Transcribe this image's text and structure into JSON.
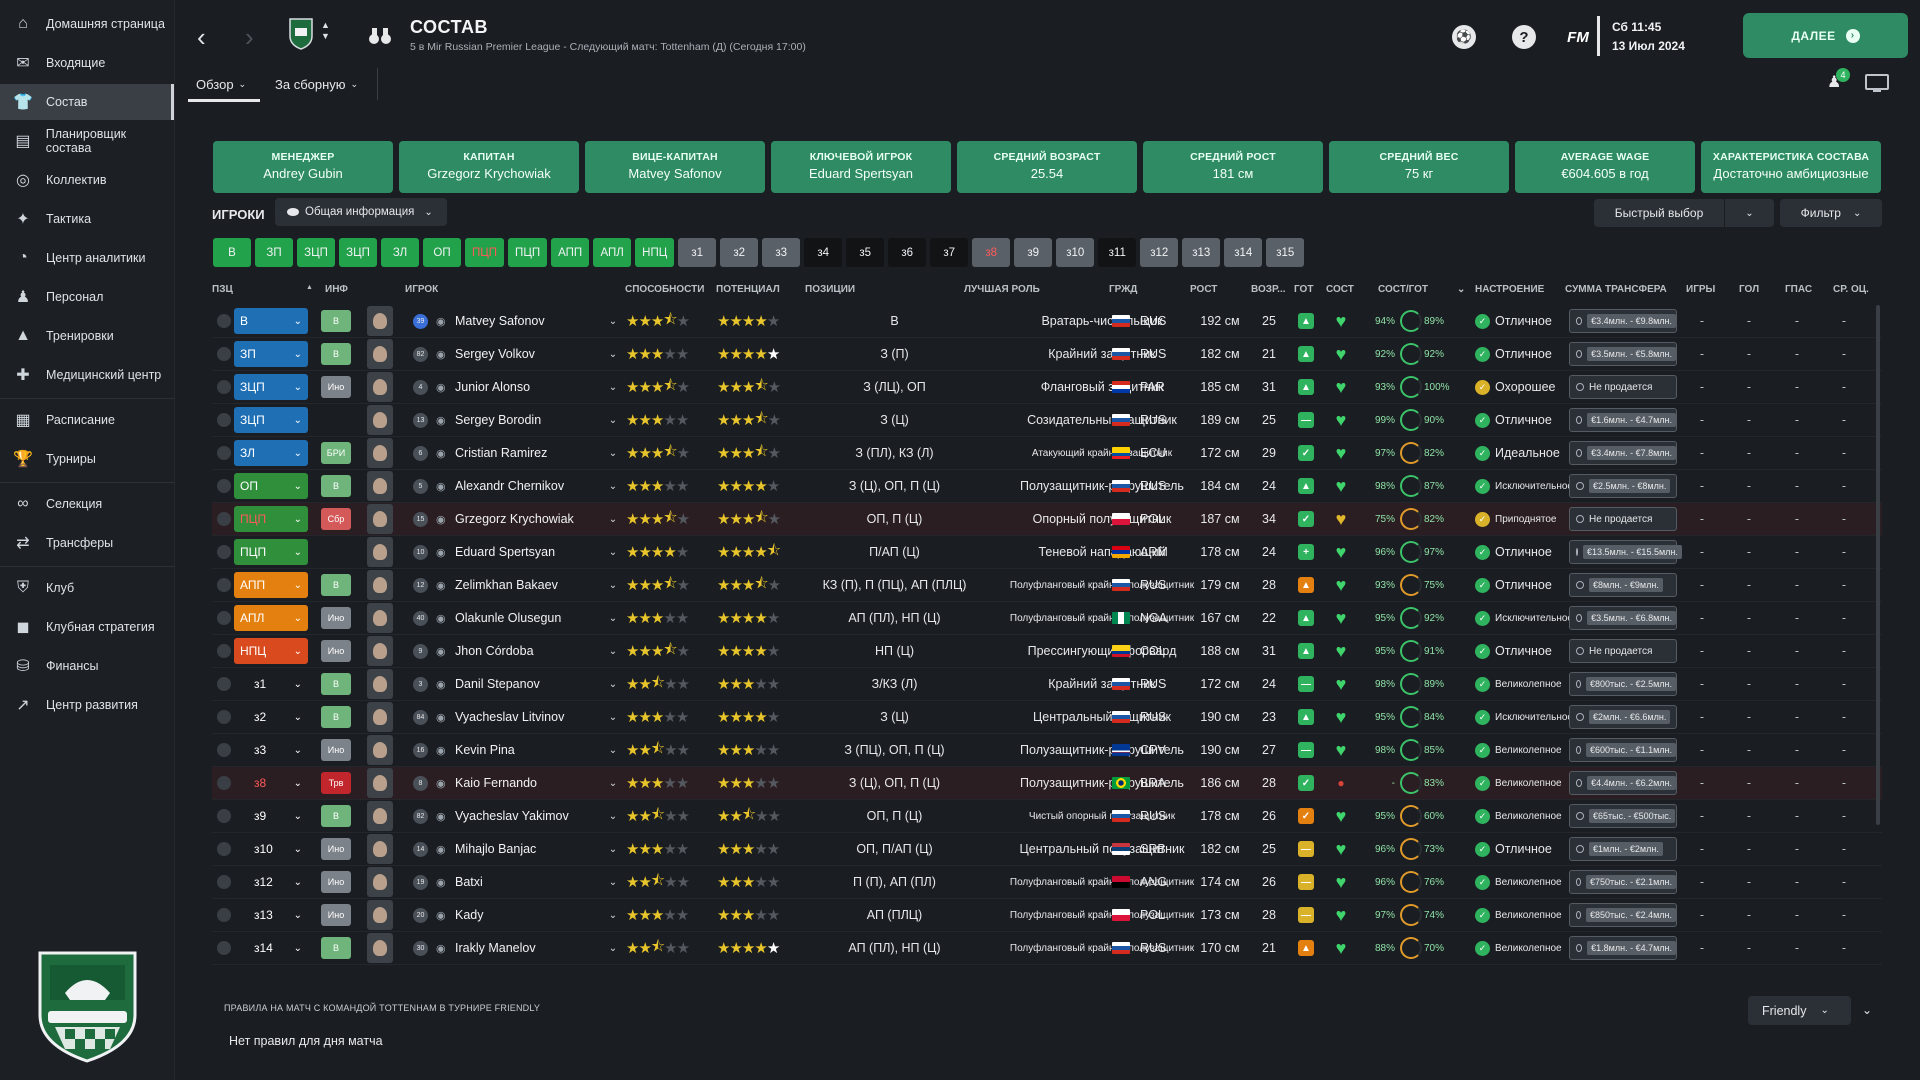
{
  "colors": {
    "accent": "#2e8b63",
    "chip_green": "#22a24a",
    "star": "#e8c52b",
    "pos_blue": "#1f6fb5",
    "pos_green": "#2f8f3a",
    "pos_orange": "#e3800f",
    "pos_red": "#d94a1e"
  },
  "sidebar": {
    "items": [
      {
        "label": "Домашняя страница",
        "icon": "home-icon"
      },
      {
        "label": "Входящие",
        "icon": "mail-icon"
      },
      {
        "label": "Состав",
        "icon": "shirt-icon"
      },
      {
        "label": "Планировщик состава",
        "icon": "clipboard-icon"
      },
      {
        "label": "Коллектив",
        "icon": "group-icon"
      },
      {
        "label": "Тактика",
        "icon": "tactics-icon"
      },
      {
        "label": "Центр аналитики",
        "icon": "analytics-icon"
      },
      {
        "label": "Персонал",
        "icon": "staff-icon"
      },
      {
        "label": "Тренировки",
        "icon": "cone-icon"
      },
      {
        "label": "Медицинский центр",
        "icon": "medical-icon"
      },
      {
        "label": "Расписание",
        "icon": "calendar-icon"
      },
      {
        "label": "Турниры",
        "icon": "trophy-icon"
      },
      {
        "label": "Селекция",
        "icon": "binoculars-icon"
      },
      {
        "label": "Трансферы",
        "icon": "transfer-icon"
      },
      {
        "label": "Клуб",
        "icon": "shield-icon"
      },
      {
        "label": "Клубная стратегия",
        "icon": "strategy-icon"
      },
      {
        "label": "Финансы",
        "icon": "money-icon"
      },
      {
        "label": "Центр развития",
        "icon": "development-icon"
      }
    ]
  },
  "header": {
    "title": "СОСТАВ",
    "subtitle": "5 в Mir Russian Premier League - Следующий матч: Tottenham (Д) (Сегодня 17:00)",
    "fm_label": "FM",
    "day_time": "Сб 11:45",
    "date": "13 Июл 2024",
    "continue_label": "ДАЛЕЕ",
    "inbox_badge": "4",
    "tabs": [
      "Обзор",
      "За сборную"
    ]
  },
  "cards": [
    {
      "label": "МЕНЕДЖЕР",
      "value": "Andrey Gubin"
    },
    {
      "label": "КАПИТАН",
      "value": "Grzegorz Krychowiak"
    },
    {
      "label": "ВИЦЕ-КАПИТАН",
      "value": "Matvey Safonov"
    },
    {
      "label": "КЛЮЧЕВОЙ ИГРОК",
      "value": "Eduard Spertsyan"
    },
    {
      "label": "СРЕДНИЙ ВОЗРАСТ",
      "value": "25.54"
    },
    {
      "label": "СРЕДНИЙ РОСТ",
      "value": "181 см"
    },
    {
      "label": "СРЕДНИЙ ВЕС",
      "value": "75 кг"
    },
    {
      "label": "AVERAGE WAGE",
      "value": "€604.605 в год"
    },
    {
      "label": "ХАРАКТЕРИСТИКА СОСТАВА",
      "value": "Достаточно амбициозные"
    }
  ],
  "toolbar": {
    "players_label": "ИГРОКИ",
    "view": "Общая информация",
    "quick_select": "Быстрый выбор",
    "filter": "Фильтр"
  },
  "chips": [
    {
      "label": "В",
      "style": "green"
    },
    {
      "label": "ЗП",
      "style": "green"
    },
    {
      "label": "ЗЦП",
      "style": "green"
    },
    {
      "label": "ЗЦП",
      "style": "green"
    },
    {
      "label": "ЗЛ",
      "style": "green"
    },
    {
      "label": "ОП",
      "style": "green"
    },
    {
      "label": "ПЦП",
      "style": "red-text"
    },
    {
      "label": "ПЦП",
      "style": "green"
    },
    {
      "label": "АПП",
      "style": "green"
    },
    {
      "label": "АПЛ",
      "style": "green"
    },
    {
      "label": "НПЦ",
      "style": "green"
    },
    {
      "label": "з1",
      "style": "gray"
    },
    {
      "label": "з2",
      "style": "gray"
    },
    {
      "label": "з3",
      "style": "gray"
    },
    {
      "label": "з4",
      "style": "dark"
    },
    {
      "label": "з5",
      "style": "dark"
    },
    {
      "label": "з6",
      "style": "dark"
    },
    {
      "label": "з7",
      "style": "dark"
    },
    {
      "label": "з8",
      "style": "red-text gray"
    },
    {
      "label": "з9",
      "style": "gray"
    },
    {
      "label": "з10",
      "style": "gray"
    },
    {
      "label": "з11",
      "style": "dark"
    },
    {
      "label": "з12",
      "style": "gray"
    },
    {
      "label": "з13",
      "style": "gray"
    },
    {
      "label": "з14",
      "style": "gray"
    },
    {
      "label": "з15",
      "style": "gray"
    }
  ],
  "columns": [
    "ПЗЦ",
    "ИНФ",
    "ИГРОК",
    "СПОСОБНОСТИ",
    "ПОТЕНЦИАЛ",
    "ПОЗИЦИИ",
    "ЛУЧШАЯ РОЛЬ",
    "ГРЖД",
    "РОСТ",
    "ВОЗР...",
    "ГОТ",
    "СОСТ",
    "СОСТ/ГОТ",
    "НАСТРОЕНИЕ",
    "СУММА ТРАНСФЕРА",
    "ИГРЫ",
    "ГОЛ",
    "ГПАС",
    "СР. ОЦ."
  ],
  "players": [
    {
      "pos": "В",
      "pos_color": "blue",
      "info": "В",
      "info_color": "#6fb57b",
      "num": "39",
      "name": "Matvey Safonov",
      "abil": 3.5,
      "pot": 4,
      "pot_white": false,
      "positions": "В",
      "role": "Вратарь-чистильщик",
      "role_small": false,
      "flag": "ru",
      "nat": "RUS",
      "height": "192 см",
      "age": "25",
      "ready": "up",
      "cond": "green",
      "pct1": "94%",
      "pct2": "89%",
      "ring": "green",
      "mood_icon": "green",
      "mood": "Отличное",
      "mood_small": false,
      "fee": "€3.4млн. - €9.8млн.",
      "fee_box": true,
      "apps": "-",
      "goals": "-",
      "ast": "-",
      "avr": "-"
    },
    {
      "pos": "ЗП",
      "pos_color": "blue",
      "info": "В",
      "info_color": "#6fb57b",
      "num": "82",
      "name": "Sergey Volkov",
      "abil": 3,
      "pot": 4,
      "pot_white": true,
      "positions": "З (П)",
      "role": "Крайний защитник",
      "role_small": false,
      "flag": "ru",
      "nat": "RUS",
      "height": "182 см",
      "age": "21",
      "ready": "up",
      "cond": "green",
      "pct1": "92%",
      "pct2": "92%",
      "ring": "green",
      "mood_icon": "green",
      "mood": "Отличное",
      "mood_small": false,
      "fee": "€3.5млн. - €5.8млн.",
      "fee_box": true,
      "apps": "-",
      "goals": "-",
      "ast": "-",
      "avr": "-"
    },
    {
      "pos": "ЗЦП",
      "pos_color": "blue",
      "info": "Ино",
      "info_color": "#7c8289",
      "num": "4",
      "name": "Junior Alonso",
      "abil": 3.5,
      "pot": 3.5,
      "pot_white": false,
      "positions": "З (ЛЦ), ОП",
      "role": "Фланговый защитник",
      "role_small": false,
      "flag": "py",
      "nat": "PAR",
      "height": "185 см",
      "age": "31",
      "ready": "up",
      "cond": "green",
      "pct1": "93%",
      "pct2": "100%",
      "ring": "green",
      "mood_icon": "yellow",
      "mood": "Охорошее",
      "mood_small": false,
      "fee": "Не продается",
      "fee_box": false,
      "apps": "-",
      "goals": "-",
      "ast": "-",
      "avr": "-"
    },
    {
      "pos": "ЗЦП",
      "pos_color": "blue",
      "info": "",
      "info_color": "transparent",
      "num": "13",
      "name": "Sergey Borodin",
      "abil": 3,
      "pot": 3.5,
      "pot_white": false,
      "positions": "З (Ц)",
      "role": "Созидательный защитник",
      "role_small": false,
      "flag": "ru",
      "nat": "RUS",
      "height": "189 см",
      "age": "25",
      "ready": "mid",
      "cond": "green",
      "pct1": "99%",
      "pct2": "90%",
      "ring": "green",
      "mood_icon": "green",
      "mood": "Отличное",
      "mood_small": false,
      "fee": "€1.6млн. - €4.7млн.",
      "fee_box": true,
      "apps": "-",
      "goals": "-",
      "ast": "-",
      "avr": "-"
    },
    {
      "pos": "ЗЛ",
      "pos_color": "blue",
      "info": "БРИ",
      "info_color": "#6fb57b",
      "num": "6",
      "name": "Cristian Ramirez",
      "abil": 3.5,
      "pot": 3.5,
      "pot_white": false,
      "positions": "З (ПЛ), КЗ (Л)",
      "role": "Атакующий крайний защитник",
      "role_small": true,
      "flag": "ec",
      "nat": "ECU",
      "height": "172 см",
      "age": "29",
      "ready": "check",
      "cond": "green",
      "pct1": "97%",
      "pct2": "82%",
      "ring": "orange",
      "mood_icon": "green",
      "mood": "Идеальное",
      "mood_small": false,
      "fee": "€3.4млн. - €7.8млн.",
      "fee_box": true,
      "apps": "-",
      "goals": "-",
      "ast": "-",
      "avr": "-"
    },
    {
      "pos": "ОП",
      "pos_color": "green",
      "info": "В",
      "info_color": "#6fb57b",
      "num": "5",
      "name": "Alexandr Chernikov",
      "abil": 3,
      "pot": 4,
      "pot_white": false,
      "positions": "З (Ц), ОП, П (Ц)",
      "role": "Полузащитник-разрушитель",
      "role_small": false,
      "flag": "ru",
      "nat": "RUS",
      "height": "184 см",
      "age": "24",
      "ready": "up",
      "cond": "green",
      "pct1": "98%",
      "pct2": "87%",
      "ring": "green",
      "mood_icon": "green",
      "mood": "Исключительное",
      "mood_small": true,
      "fee": "€2.5млн. - €8млн.",
      "fee_box": true,
      "apps": "-",
      "goals": "-",
      "ast": "-",
      "avr": "-"
    },
    {
      "pos": "ПЦП",
      "pos_color": "green",
      "pos_red": true,
      "info": "Сбр",
      "info_color": "#d45a5a",
      "num": "15",
      "name": "Grzegorz Krychowiak",
      "abil": 3.5,
      "pot": 3.5,
      "pot_white": false,
      "positions": "ОП, П (Ц)",
      "role": "Опорный полузащитник",
      "role_small": false,
      "flag": "pl",
      "nat": "POL",
      "height": "187 см",
      "age": "34",
      "ready": "check",
      "cond": "yellow",
      "pct1": "75%",
      "pct2": "82%",
      "ring": "orange",
      "mood_icon": "yellow",
      "mood": "Приподнятое",
      "mood_small": true,
      "fee": "Не продается",
      "fee_box": false,
      "apps": "-",
      "goals": "-",
      "ast": "-",
      "avr": "-",
      "highlight": true
    },
    {
      "pos": "ПЦП",
      "pos_color": "green",
      "info": "",
      "info_color": "transparent",
      "num": "10",
      "name": "Eduard Spertsyan",
      "abil": 4,
      "pot": 4.5,
      "pot_white": false,
      "positions": "П/АП (Ц)",
      "role": "Теневой нападающий",
      "role_small": false,
      "flag": "am",
      "nat": "ARM",
      "height": "178 см",
      "age": "24",
      "ready": "plus",
      "cond": "green",
      "pct1": "96%",
      "pct2": "97%",
      "ring": "green",
      "mood_icon": "green",
      "mood": "Отличное",
      "mood_small": false,
      "fee": "€13.5млн. - €15.5млн.",
      "fee_box": true,
      "apps": "-",
      "goals": "-",
      "ast": "-",
      "avr": "-"
    },
    {
      "pos": "АПП",
      "pos_color": "orange",
      "info": "В",
      "info_color": "#6fb57b",
      "num": "12",
      "name": "Zelimkhan Bakaev",
      "abil": 3.5,
      "pot": 3.5,
      "pot_white": false,
      "positions": "КЗ (П), П (ПЦ), АП (ПЛЦ)",
      "role": "Полуфланговый крайний полузащитник",
      "role_small": true,
      "flag": "ru",
      "nat": "RUS",
      "height": "179 см",
      "age": "28",
      "ready": "up-orange",
      "cond": "green",
      "pct1": "93%",
      "pct2": "75%",
      "ring": "orange",
      "mood_icon": "green",
      "mood": "Отличное",
      "mood_small": false,
      "fee": "€8млн. - €9млн.",
      "fee_box": true,
      "apps": "-",
      "goals": "-",
      "ast": "-",
      "avr": "-"
    },
    {
      "pos": "АПЛ",
      "pos_color": "orange",
      "info": "Ино",
      "info_color": "#7c8289",
      "num": "40",
      "name": "Olakunle Olusegun",
      "abil": 3,
      "pot": 4,
      "pot_white": false,
      "positions": "АП (ПЛ), НП (Ц)",
      "role": "Полуфланговый крайний полузащитник",
      "role_small": true,
      "flag": "ng",
      "nat": "NGA",
      "height": "167 см",
      "age": "22",
      "ready": "up",
      "cond": "green",
      "pct1": "95%",
      "pct2": "92%",
      "ring": "green",
      "mood_icon": "green",
      "mood": "Исключительное",
      "mood_small": true,
      "fee": "€3.5млн. - €6.8млн.",
      "fee_box": true,
      "apps": "-",
      "goals": "-",
      "ast": "-",
      "avr": "-"
    },
    {
      "pos": "НПЦ",
      "pos_color": "red",
      "info": "Ино",
      "info_color": "#7c8289",
      "num": "9",
      "name": "Jhon Córdoba",
      "abil": 3.5,
      "pot": 4,
      "pot_white": false,
      "positions": "НП (Ц)",
      "role": "Прессингующий форвард",
      "role_small": false,
      "flag": "co",
      "nat": "COL",
      "height": "188 см",
      "age": "31",
      "ready": "up",
      "cond": "green",
      "pct1": "95%",
      "pct2": "91%",
      "ring": "green",
      "mood_icon": "green",
      "mood": "Отличное",
      "mood_small": false,
      "fee": "Не продается",
      "fee_box": false,
      "apps": "-",
      "goals": "-",
      "ast": "-",
      "avr": "-"
    },
    {
      "pos": "з1",
      "pos_color": "none",
      "info": "В",
      "info_color": "#6fb57b",
      "num": "3",
      "name": "Danil Stepanov",
      "abil": 2.5,
      "pot": 3,
      "pot_white": false,
      "positions": "З/КЗ (Л)",
      "role": "Крайний защитник",
      "role_small": false,
      "flag": "ru",
      "nat": "RUS",
      "height": "172 см",
      "age": "24",
      "ready": "mid",
      "cond": "green",
      "pct1": "98%",
      "pct2": "89%",
      "ring": "green",
      "mood_icon": "green",
      "mood": "Великолепное",
      "mood_small": true,
      "fee": "€800тыс. - €2.5млн.",
      "fee_box": true,
      "apps": "-",
      "goals": "-",
      "ast": "-",
      "avr": "-"
    },
    {
      "pos": "з2",
      "pos_color": "none",
      "info": "В",
      "info_color": "#6fb57b",
      "num": "84",
      "name": "Vyacheslav Litvinov",
      "abil": 3,
      "pot": 4,
      "pot_white": false,
      "positions": "З (Ц)",
      "role": "Центральный защитник",
      "role_small": false,
      "flag": "ru",
      "nat": "RUS",
      "height": "190 см",
      "age": "23",
      "ready": "up",
      "cond": "green",
      "pct1": "95%",
      "pct2": "84%",
      "ring": "green",
      "mood_icon": "green",
      "mood": "Исключительное",
      "mood_small": true,
      "fee": "€2млн. - €6.6млн.",
      "fee_box": true,
      "apps": "-",
      "goals": "-",
      "ast": "-",
      "avr": "-"
    },
    {
      "pos": "з3",
      "pos_color": "none",
      "info": "Ино",
      "info_color": "#7c8289",
      "num": "16",
      "name": "Kevin Pina",
      "abil": 2.5,
      "pot": 3,
      "pot_white": false,
      "positions": "З (ПЦ), ОП, П (Ц)",
      "role": "Полузащитник-разрушитель",
      "role_small": false,
      "flag": "cv",
      "nat": "CPV",
      "height": "190 см",
      "age": "27",
      "ready": "mid",
      "cond": "green",
      "pct1": "98%",
      "pct2": "85%",
      "ring": "green",
      "mood_icon": "green",
      "mood": "Великолепное",
      "mood_small": true,
      "fee": "€600тыс. - €1.1млн.",
      "fee_box": true,
      "apps": "-",
      "goals": "-",
      "ast": "-",
      "avr": "-"
    },
    {
      "pos": "з8",
      "pos_color": "none",
      "pos_red": true,
      "info": "Трв",
      "info_color": "#c0262b",
      "num": "8",
      "name": "Kaio Fernando",
      "abil": 3,
      "pot": 3,
      "pot_white": false,
      "positions": "З (Ц), ОП, П (Ц)",
      "role": "Полузащитник-разрушитель",
      "role_small": false,
      "flag": "br",
      "nat": "BRA",
      "height": "186 см",
      "age": "28",
      "ready": "check",
      "cond": "red",
      "pct1": "-",
      "pct2": "83%",
      "ring": "green",
      "mood_icon": "green",
      "mood": "Великолепное",
      "mood_small": true,
      "fee": "€4.4млн. - €6.2млн.",
      "fee_box": true,
      "apps": "-",
      "goals": "-",
      "ast": "-",
      "avr": "-",
      "highlight": true
    },
    {
      "pos": "з9",
      "pos_color": "none",
      "info": "В",
      "info_color": "#6fb57b",
      "num": "82",
      "name": "Vyacheslav Yakimov",
      "abil": 2.5,
      "pot": 2.5,
      "pot_white": false,
      "positions": "ОП, П (Ц)",
      "role": "Чистый опорный полузащитник",
      "role_small": true,
      "flag": "ru",
      "nat": "RUS",
      "height": "178 см",
      "age": "26",
      "ready": "check-orange",
      "cond": "green",
      "pct1": "95%",
      "pct2": "60%",
      "ring": "orange",
      "mood_icon": "green",
      "mood": "Великолепное",
      "mood_small": true,
      "fee": "€65тыс. - €500тыс.",
      "fee_box": true,
      "apps": "-",
      "goals": "-",
      "ast": "-",
      "avr": "-"
    },
    {
      "pos": "з10",
      "pos_color": "none",
      "info": "Ино",
      "info_color": "#7c8289",
      "num": "14",
      "name": "Mihajlo Banjac",
      "abil": 3,
      "pot": 3,
      "pot_white": false,
      "positions": "ОП, П/АП (Ц)",
      "role": "Центральный полузащитник",
      "role_small": false,
      "flag": "rs",
      "nat": "SRB",
      "height": "182 см",
      "age": "25",
      "ready": "mid-yellow",
      "cond": "green",
      "pct1": "96%",
      "pct2": "73%",
      "ring": "orange",
      "mood_icon": "green",
      "mood": "Отличное",
      "mood_small": false,
      "fee": "€1млн. - €2млн.",
      "fee_box": true,
      "apps": "-",
      "goals": "-",
      "ast": "-",
      "avr": "-"
    },
    {
      "pos": "з12",
      "pos_color": "none",
      "info": "Ино",
      "info_color": "#7c8289",
      "num": "19",
      "name": "Batxi",
      "abil": 2.5,
      "pot": 3,
      "pot_white": false,
      "positions": "П (П), АП (ПЛ)",
      "role": "Полуфланговый крайний полузащитник",
      "role_small": true,
      "flag": "ao",
      "nat": "ANG",
      "height": "174 см",
      "age": "26",
      "ready": "mid-yellow",
      "cond": "green",
      "pct1": "96%",
      "pct2": "76%",
      "ring": "orange",
      "mood_icon": "green",
      "mood": "Великолепное",
      "mood_small": true,
      "fee": "€750тыс. - €2.1млн.",
      "fee_box": true,
      "apps": "-",
      "goals": "-",
      "ast": "-",
      "avr": "-"
    },
    {
      "pos": "з13",
      "pos_color": "none",
      "info": "Ино",
      "info_color": "#7c8289",
      "num": "20",
      "name": "Kady",
      "abil": 3,
      "pot": 3,
      "pot_white": false,
      "positions": "АП (ПЛЦ)",
      "role": "Полуфланговый крайний полузащитник",
      "role_small": true,
      "flag": "pl",
      "nat": "POL",
      "height": "173 см",
      "age": "28",
      "ready": "mid-yellow",
      "cond": "green",
      "pct1": "97%",
      "pct2": "74%",
      "ring": "orange",
      "mood_icon": "green",
      "mood": "Великолепное",
      "mood_small": true,
      "fee": "€850тыс. - €2.4млн.",
      "fee_box": true,
      "apps": "-",
      "goals": "-",
      "ast": "-",
      "avr": "-"
    },
    {
      "pos": "з14",
      "pos_color": "none",
      "info": "В",
      "info_color": "#6fb57b",
      "num": "30",
      "name": "Irakly Manelov",
      "abil": 2.5,
      "pot": 4,
      "pot_white": true,
      "positions": "АП (ПЛ), НП (Ц)",
      "role": "Полуфланговый крайний полузащитник",
      "role_small": true,
      "flag": "ru",
      "nat": "RUS",
      "height": "170 см",
      "age": "21",
      "ready": "up-orange",
      "cond": "green",
      "pct1": "88%",
      "pct2": "70%",
      "ring": "orange",
      "mood_icon": "green",
      "mood": "Великолепное",
      "mood_small": true,
      "fee": "€1.8млн. - €4.7млн.",
      "fee_box": true,
      "apps": "-",
      "goals": "-",
      "ast": "-",
      "avr": "-"
    }
  ],
  "footer": {
    "rules_title": "ПРАВИЛА НА МАТЧ С КОМАНДОЙ TOTTENHAM В ТУРНИРЕ FRIENDLY",
    "rules_text": "Нет правил для дня матча",
    "competition": "Friendly"
  }
}
